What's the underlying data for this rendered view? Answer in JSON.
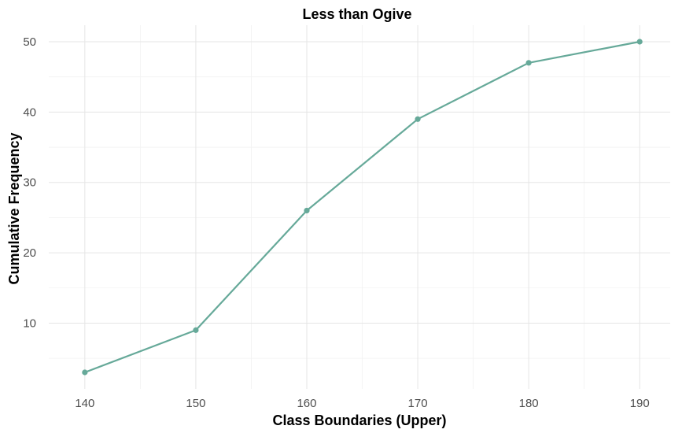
{
  "chart_data": {
    "type": "line",
    "title": "Less than Ogive",
    "xlabel": "Class Boundaries (Upper)",
    "ylabel": "Cumulative Frequency",
    "x": [
      140,
      150,
      160,
      170,
      180,
      190
    ],
    "series": [
      {
        "values": [
          3,
          9,
          26,
          39,
          47,
          50
        ]
      }
    ],
    "xticks": [
      140,
      150,
      160,
      170,
      180,
      190
    ],
    "yticks": [
      10,
      20,
      30,
      40,
      50
    ],
    "xlim": [
      136.75,
      192.75
    ],
    "ylim": [
      0.65,
      52.35
    ],
    "grid": true,
    "legend": "none",
    "colors": {
      "series": "#66a999",
      "grid": "#e5e5e5",
      "tick_text": "#4d4d4d"
    }
  }
}
